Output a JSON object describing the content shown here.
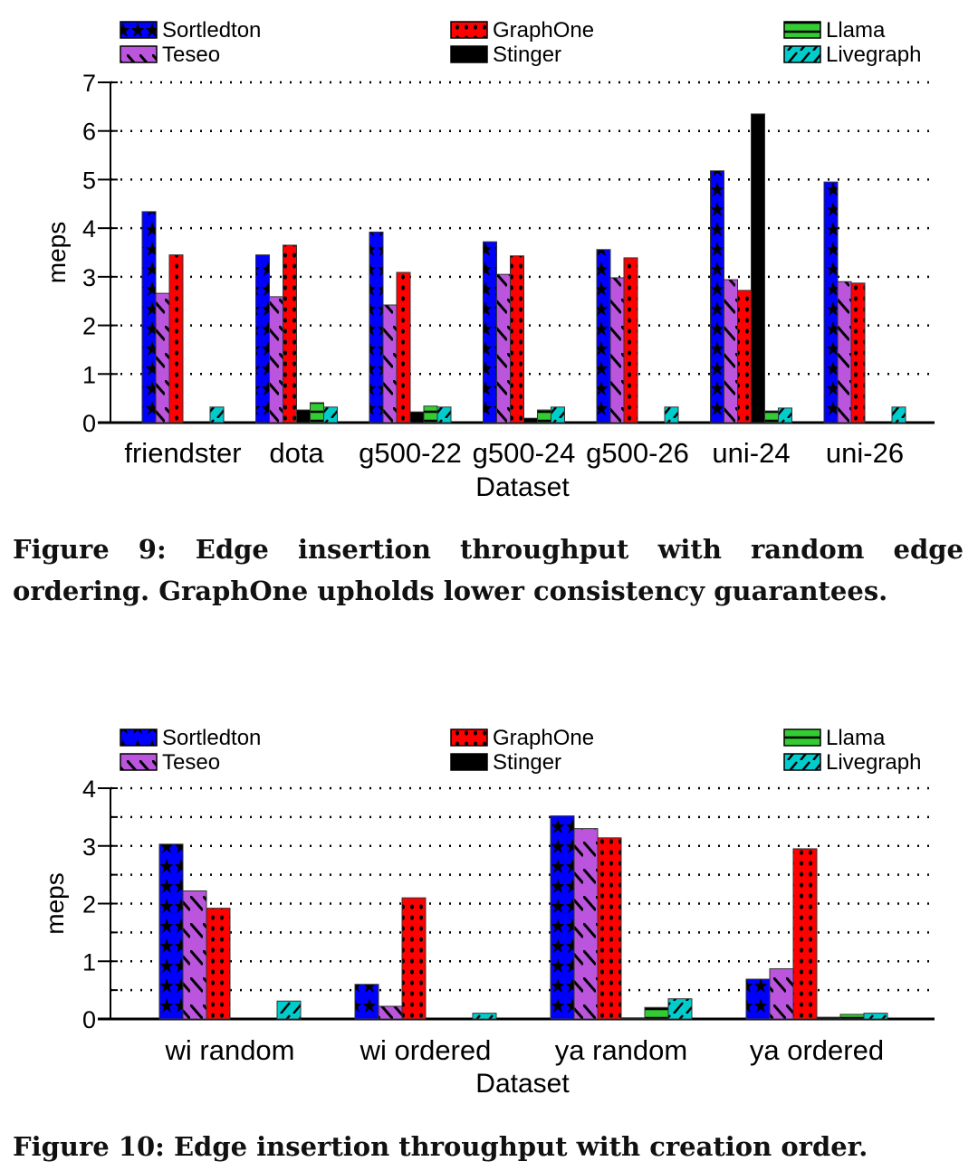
{
  "chart_data": [
    {
      "type": "bar",
      "xlabel": "Dataset",
      "ylabel": "meps",
      "ylim": [
        0,
        7
      ],
      "yticks": [
        0,
        1,
        2,
        3,
        4,
        5,
        6,
        7
      ],
      "grid": true,
      "legend": "top",
      "categories": [
        "friendster",
        "dota",
        "g500-22",
        "g500-24",
        "g500-26",
        "uni-24",
        "uni-26"
      ],
      "series": [
        {
          "name": "Sortledton",
          "color": "#0000ff",
          "pattern": "stars",
          "values": [
            4.34,
            3.45,
            3.92,
            3.72,
            3.56,
            5.18,
            4.95
          ]
        },
        {
          "name": "Teseo",
          "color": "#bb55dd",
          "pattern": "diagonal",
          "values": [
            2.66,
            2.59,
            2.42,
            3.05,
            2.98,
            2.94,
            2.9
          ]
        },
        {
          "name": "GraphOne",
          "color": "#ff0000",
          "pattern": "dots",
          "values": [
            3.45,
            3.65,
            3.09,
            3.43,
            3.39,
            2.72,
            2.87
          ]
        },
        {
          "name": "Stinger",
          "color": "#000000",
          "pattern": "solid",
          "values": [
            0,
            0.26,
            0.22,
            0.09,
            0,
            6.35,
            0
          ]
        },
        {
          "name": "Llama",
          "color": "#33cc33",
          "pattern": "horizontal",
          "values": [
            0,
            0.41,
            0.34,
            0.26,
            0,
            0.24,
            0
          ]
        },
        {
          "name": "Livegraph",
          "color": "#00cccc",
          "pattern": "slash",
          "values": [
            0.32,
            0.32,
            0.32,
            0.32,
            0.32,
            0.3,
            0.32
          ]
        }
      ],
      "caption": "Figure 9: Edge insertion throughput with random edge ordering. GraphOne upholds lower consistency guarantees."
    },
    {
      "type": "bar",
      "xlabel": "Dataset",
      "ylabel": "meps",
      "ylim": [
        0,
        4
      ],
      "yticks": [
        0,
        1,
        2,
        3,
        4
      ],
      "grid": true,
      "legend": "top",
      "categories": [
        "wi random",
        "wi ordered",
        "ya random",
        "ya ordered"
      ],
      "series": [
        {
          "name": "Sortledton",
          "color": "#0000ff",
          "pattern": "stars",
          "values": [
            3.03,
            0.6,
            3.52,
            0.69
          ]
        },
        {
          "name": "Teseo",
          "color": "#bb55dd",
          "pattern": "diagonal",
          "values": [
            2.22,
            0.22,
            3.3,
            0.87
          ]
        },
        {
          "name": "GraphOne",
          "color": "#ff0000",
          "pattern": "dots",
          "values": [
            1.92,
            2.1,
            3.14,
            2.95
          ]
        },
        {
          "name": "Stinger",
          "color": "#000000",
          "pattern": "solid",
          "values": [
            0,
            0,
            0.02,
            0.03
          ]
        },
        {
          "name": "Llama",
          "color": "#33cc33",
          "pattern": "horizontal",
          "values": [
            0,
            0,
            0.2,
            0.08
          ]
        },
        {
          "name": "Livegraph",
          "color": "#00cccc",
          "pattern": "slash",
          "values": [
            0.31,
            0.1,
            0.35,
            0.1
          ]
        }
      ],
      "caption": "Figure 10: Edge insertion throughput with creation order."
    }
  ]
}
